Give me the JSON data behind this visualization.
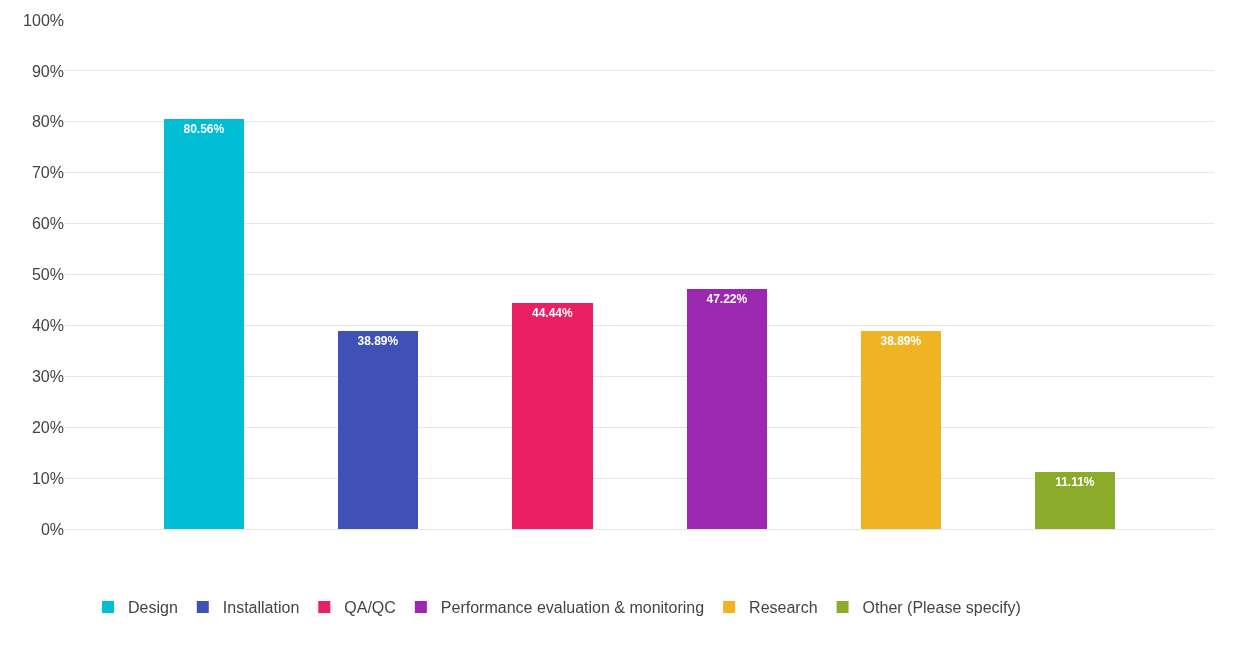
{
  "chart_data": {
    "type": "bar",
    "categories": [
      null,
      null,
      null,
      null,
      null,
      null
    ],
    "series": [
      {
        "name": "Design",
        "color": "#00bcd4",
        "values": [
          80.56,
          null,
          null,
          null,
          null,
          null
        ],
        "value_labels": [
          "80.56%",
          null,
          null,
          null,
          null,
          null
        ]
      },
      {
        "name": "Installation",
        "color": "#3f51b5",
        "values": [
          null,
          38.89,
          null,
          null,
          null,
          null
        ],
        "value_labels": [
          null,
          "38.89%",
          null,
          null,
          null,
          null
        ]
      },
      {
        "name": "QA/QC",
        "color": "#e91e63",
        "values": [
          null,
          null,
          44.44,
          null,
          null,
          null
        ],
        "value_labels": [
          null,
          null,
          "44.44%",
          null,
          null,
          null
        ]
      },
      {
        "name": "Performance evaluation & monitoring",
        "color": "#9c27b0",
        "values": [
          null,
          null,
          null,
          47.22,
          null,
          null
        ],
        "value_labels": [
          null,
          null,
          null,
          "47.22%",
          null,
          null
        ]
      },
      {
        "name": "Research",
        "color": "#f0b323",
        "values": [
          null,
          null,
          null,
          null,
          38.89,
          null
        ],
        "value_labels": [
          null,
          null,
          null,
          null,
          "38.89%",
          null
        ]
      },
      {
        "name": "Other (Please specify)",
        "color": "#8bab2a",
        "values": [
          null,
          null,
          null,
          null,
          null,
          11.11
        ],
        "value_labels": [
          null,
          null,
          null,
          null,
          null,
          "11.11%"
        ]
      }
    ],
    "ylim": [
      0,
      100
    ],
    "yticks": [
      {
        "value": 0,
        "label": "0%"
      },
      {
        "value": 10,
        "label": "10%"
      },
      {
        "value": 20,
        "label": "20%"
      },
      {
        "value": 30,
        "label": "30%"
      },
      {
        "value": 40,
        "label": "40%"
      },
      {
        "value": 50,
        "label": "50%"
      },
      {
        "value": 60,
        "label": "60%"
      },
      {
        "value": 70,
        "label": "70%"
      },
      {
        "value": 80,
        "label": "80%"
      },
      {
        "value": 90,
        "label": "90%"
      },
      {
        "value": 100,
        "label": "100%"
      }
    ],
    "grid": "y",
    "legend": "bottom",
    "tick_labels": "y"
  }
}
